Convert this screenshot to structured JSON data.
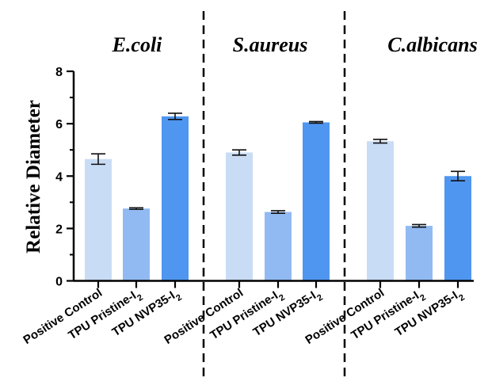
{
  "chart_data": {
    "type": "bar",
    "ylabel": "Relative Diameter",
    "ylim": [
      0,
      8
    ],
    "yticks": [
      0,
      2,
      4,
      6,
      8
    ],
    "grid": false,
    "groups": [
      {
        "title": "E.coli",
        "categories": [
          {
            "text": "Positive Control",
            "sub": ""
          },
          {
            "text": "TPU Pristine-I",
            "sub": "2"
          },
          {
            "text": "TPU NVP35-I",
            "sub": "2"
          }
        ],
        "values": [
          4.65,
          2.76,
          6.28
        ],
        "errors": [
          0.2,
          0.03,
          0.12
        ],
        "colors": [
          "#c9dcf5",
          "#91baf2",
          "#4f96f0"
        ]
      },
      {
        "title": "S.aureus",
        "categories": [
          {
            "text": "Positive Control",
            "sub": ""
          },
          {
            "text": "TPU Pristine-I",
            "sub": "2"
          },
          {
            "text": "TPU NVP35-I",
            "sub": "2"
          }
        ],
        "values": [
          4.9,
          2.63,
          6.05
        ],
        "errors": [
          0.1,
          0.05,
          0.03
        ],
        "colors": [
          "#c9dcf5",
          "#91baf2",
          "#4f96f0"
        ]
      },
      {
        "title": "C.albicans",
        "categories": [
          {
            "text": "Positive Control",
            "sub": ""
          },
          {
            "text": "TPU Pristine-I",
            "sub": "2"
          },
          {
            "text": "TPU NVP35-I",
            "sub": "2"
          }
        ],
        "values": [
          5.33,
          2.1,
          4.0
        ],
        "errors": [
          0.07,
          0.05,
          0.18
        ],
        "colors": [
          "#c9dcf5",
          "#91baf2",
          "#4f96f0"
        ]
      }
    ]
  }
}
